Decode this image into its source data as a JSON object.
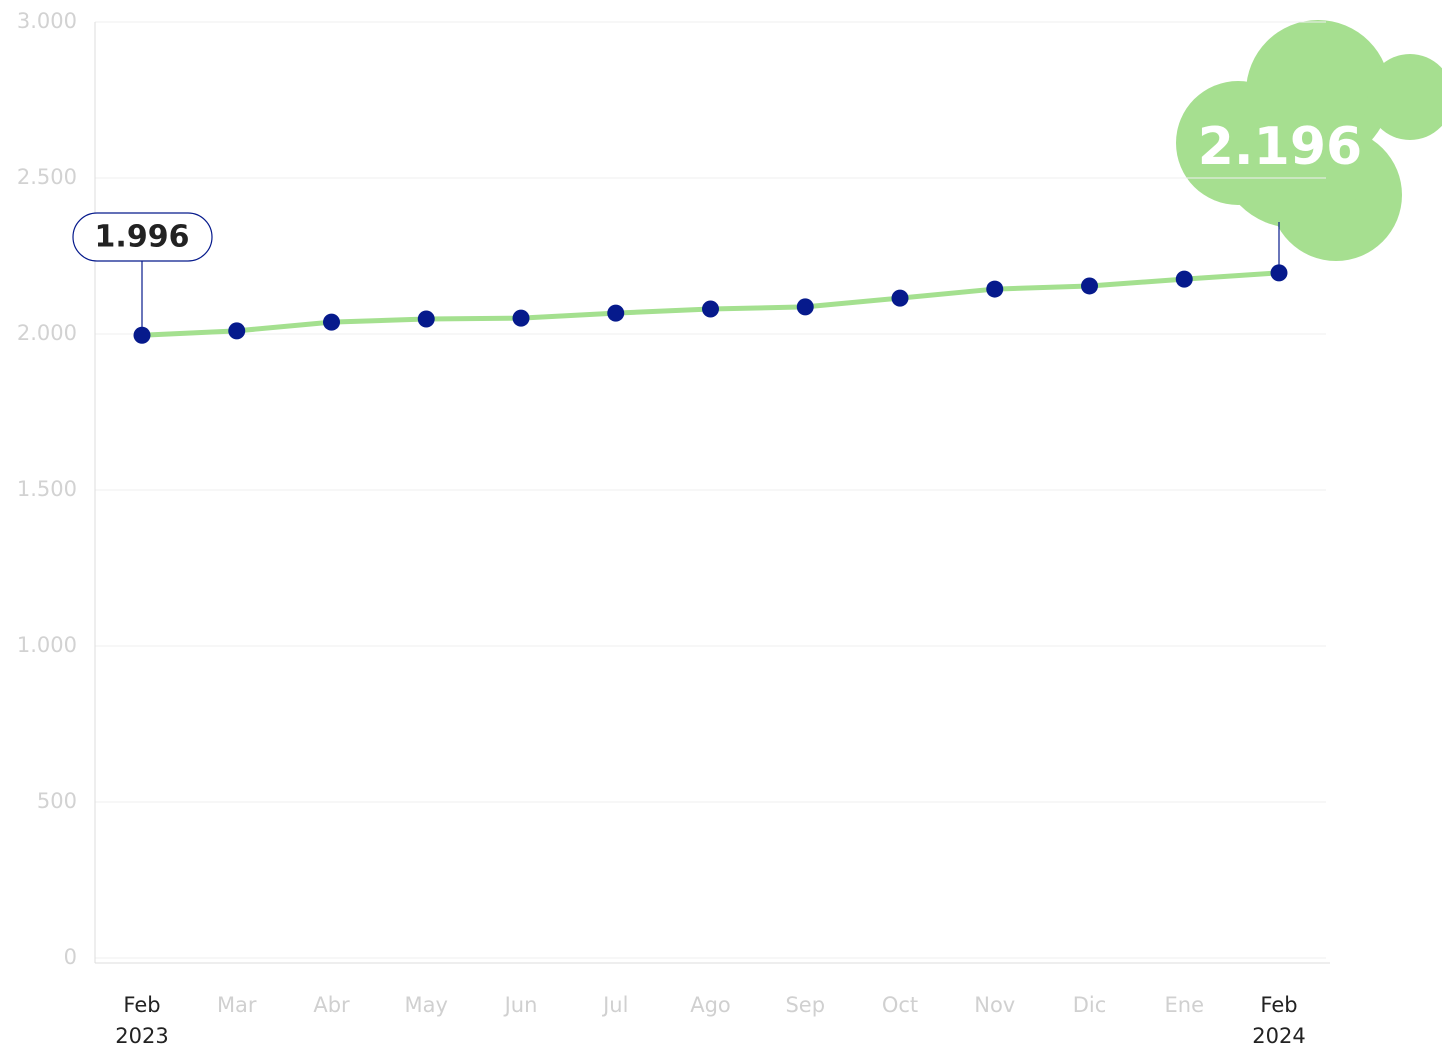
{
  "chart_data": {
    "type": "line",
    "categories": [
      "Feb",
      "Mar",
      "Abr",
      "May",
      "Jun",
      "Jul",
      "Ago",
      "Sep",
      "Oct",
      "Nov",
      "Dic",
      "Ene",
      "Feb"
    ],
    "x_sublabels": [
      "2023",
      null,
      null,
      null,
      null,
      null,
      null,
      null,
      null,
      null,
      null,
      null,
      "2024"
    ],
    "series": [
      {
        "color": "#a4e08f",
        "values": [
          1996,
          2010,
          2038,
          2048,
          2051,
          2067,
          2080,
          2087,
          2115,
          2144,
          2154,
          2176,
          2196
        ],
        "value_labels": [
          "1.996",
          null,
          null,
          null,
          null,
          null,
          null,
          null,
          null,
          null,
          null,
          null,
          "2.196"
        ]
      }
    ],
    "marker_color": "#061a8c",
    "ylim": [
      0,
      3000
    ],
    "yticks": [
      0,
      500,
      {
        "value": 1000,
        "label": "1.000"
      },
      {
        "value": 1500,
        "label": "1.500"
      },
      {
        "value": 2000,
        "label": "2.000"
      },
      {
        "value": 2500,
        "label": "2.500"
      },
      {
        "value": 3000,
        "label": "3.000"
      }
    ],
    "grid": true
  }
}
